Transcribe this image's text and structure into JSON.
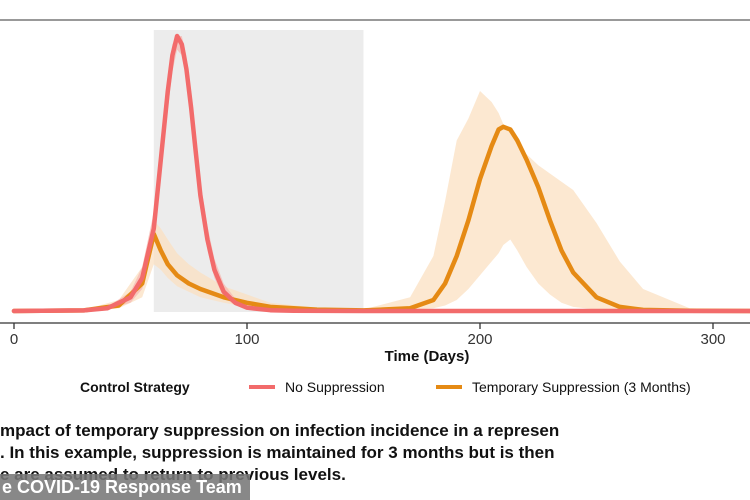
{
  "chart_data": {
    "type": "line",
    "title": "",
    "xlabel": "Time (Days)",
    "ylabel": "",
    "xlim": [
      -2,
      322
    ],
    "ylim": [
      0,
      1
    ],
    "x_ticks": [
      0,
      100,
      200,
      300
    ],
    "grid": false,
    "shaded_region": {
      "x_start": 60,
      "x_end": 150,
      "color": "#ececec"
    },
    "legend": {
      "title": "Control Strategy",
      "position": "bottom"
    },
    "series": [
      {
        "name": "No Suppression",
        "color": "#f26b6b",
        "band_color": "#f6b9b3",
        "x": [
          0,
          30,
          40,
          50,
          55,
          60,
          63,
          66,
          68,
          70,
          72,
          74,
          76,
          78,
          80,
          83,
          86,
          90,
          95,
          100,
          110,
          120,
          150,
          322
        ],
        "y": [
          0,
          0.002,
          0.01,
          0.05,
          0.12,
          0.3,
          0.55,
          0.8,
          0.93,
          1.0,
          0.97,
          0.88,
          0.74,
          0.58,
          0.42,
          0.26,
          0.15,
          0.07,
          0.03,
          0.012,
          0.003,
          0.001,
          0,
          0
        ],
        "lower": [
          0,
          0.001,
          0.006,
          0.03,
          0.08,
          0.24,
          0.48,
          0.73,
          0.87,
          0.95,
          0.93,
          0.84,
          0.7,
          0.53,
          0.37,
          0.22,
          0.12,
          0.05,
          0.02,
          0.008,
          0.002,
          0,
          0,
          0
        ],
        "upper": [
          0,
          0.004,
          0.015,
          0.07,
          0.16,
          0.36,
          0.62,
          0.86,
          0.97,
          1.0,
          1.0,
          0.93,
          0.8,
          0.64,
          0.47,
          0.31,
          0.19,
          0.1,
          0.045,
          0.02,
          0.006,
          0.002,
          0,
          0
        ]
      },
      {
        "name": "Temporary Suppression (3 Months)",
        "color": "#e58a14",
        "band_color": "#fbe0c2",
        "x": [
          0,
          30,
          45,
          55,
          60,
          63,
          66,
          70,
          75,
          80,
          90,
          100,
          110,
          130,
          150,
          170,
          180,
          185,
          190,
          195,
          200,
          205,
          208,
          210,
          213,
          216,
          220,
          225,
          230,
          235,
          240,
          250,
          260,
          270,
          290,
          322
        ],
        "y": [
          0,
          0.002,
          0.02,
          0.1,
          0.28,
          0.22,
          0.17,
          0.13,
          0.1,
          0.08,
          0.05,
          0.03,
          0.015,
          0.005,
          0.002,
          0.01,
          0.04,
          0.1,
          0.2,
          0.33,
          0.48,
          0.6,
          0.66,
          0.67,
          0.66,
          0.62,
          0.55,
          0.45,
          0.33,
          0.22,
          0.14,
          0.05,
          0.015,
          0.004,
          0.001,
          0
        ],
        "lower": [
          0,
          0.001,
          0.01,
          0.05,
          0.17,
          0.15,
          0.12,
          0.09,
          0.07,
          0.05,
          0.03,
          0.015,
          0.007,
          0.002,
          0.001,
          0.005,
          0.01,
          0.02,
          0.04,
          0.08,
          0.13,
          0.18,
          0.21,
          0.24,
          0.26,
          0.22,
          0.16,
          0.1,
          0.06,
          0.03,
          0.015,
          0.005,
          0.002,
          0,
          0,
          0
        ],
        "upper": [
          0,
          0.004,
          0.04,
          0.16,
          0.33,
          0.3,
          0.26,
          0.21,
          0.17,
          0.14,
          0.09,
          0.06,
          0.03,
          0.012,
          0.006,
          0.05,
          0.2,
          0.4,
          0.62,
          0.7,
          0.8,
          0.76,
          0.72,
          0.68,
          0.65,
          0.61,
          0.57,
          0.53,
          0.5,
          0.47,
          0.44,
          0.32,
          0.18,
          0.08,
          0.01,
          0
        ]
      }
    ]
  },
  "caption": {
    "line1": "mpact of temporary suppression on infection incidence in a represen",
    "line2": ". In this example, suppression is maintained for 3 months but is then",
    "line3": "e are assumed to return to previous levels."
  },
  "credit": "e COVID-19 Response Team"
}
